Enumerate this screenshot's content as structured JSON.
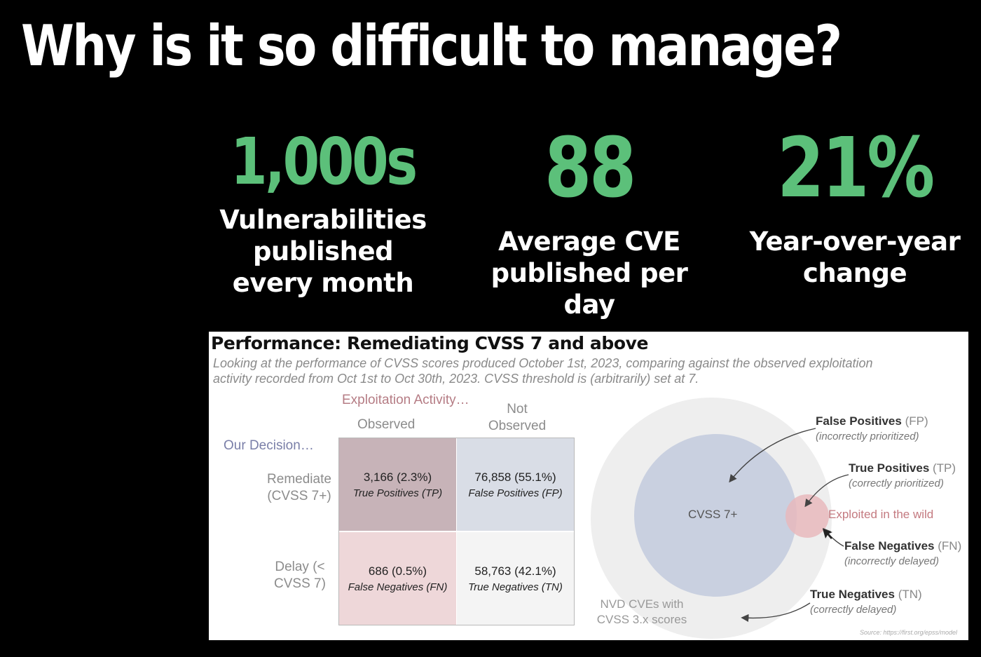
{
  "title": "Why is it so difficult to manage?",
  "stats": [
    {
      "value": "1,000s",
      "label_lines": [
        "Vulnerabilities",
        "published",
        "every month"
      ]
    },
    {
      "value": "88",
      "label_lines": [
        "Average CVE",
        "published per",
        "day"
      ]
    },
    {
      "value": "21%",
      "label_lines": [
        "Year-over-year",
        "change"
      ]
    }
  ],
  "colors": {
    "accent_green": "#5cc07a",
    "tp_cell": "#c7b3b8",
    "fp_cell": "#d9dde6",
    "fn_cell": "#eed7d9",
    "tn_cell": "#f4f4f4"
  },
  "slide": {
    "title": "Performance: Remediating CVSS 7 and above",
    "subtitle": "Looking at the performance of CVSS scores produced October 1st, 2023, comparing against the observed exploitation activity recorded from Oct 1st to Oct 30th, 2023. CVSS threshold is (arbitrarily) set at 7.",
    "matrix": {
      "exploitation_label": "Exploitation Activity…",
      "observed": "Observed",
      "not_observed": "Not Observed",
      "decision_label": "Our Decision…",
      "remediate": "Remediate (CVSS 7+)",
      "delay": "Delay (< CVSS 7)",
      "tp": {
        "value": "3,166 (2.3%)",
        "name": "True Positives (TP)"
      },
      "fp": {
        "value": "76,858 (55.1%)",
        "name": "False Positives (FP)"
      },
      "fn": {
        "value": "686 (0.5%)",
        "name": "False Negatives (FN)"
      },
      "tn": {
        "value": "58,763 (42.1%)",
        "name": "True Negatives (TN)"
      }
    },
    "venn": {
      "cvss_label": "CVSS 7+",
      "wild_label": "Exploited in the wild",
      "nvd_label": "NVD CVEs with CVSS 3.x scores",
      "fp_title": "False Positives",
      "fp_abbr": "(FP)",
      "fp_note": "(incorrectly prioritized)",
      "tp_title": "True Positives",
      "tp_abbr": "(TP)",
      "tp_note": "(correctly prioritized)",
      "fn_title": "False Negatives",
      "fn_abbr": "(FN)",
      "fn_note": "(incorrectly delayed)",
      "tn_title": "True Negatives",
      "tn_abbr": "(TN)",
      "tn_note": "(correctly delayed)"
    },
    "source": "Source: https://first.org/epss/model"
  }
}
